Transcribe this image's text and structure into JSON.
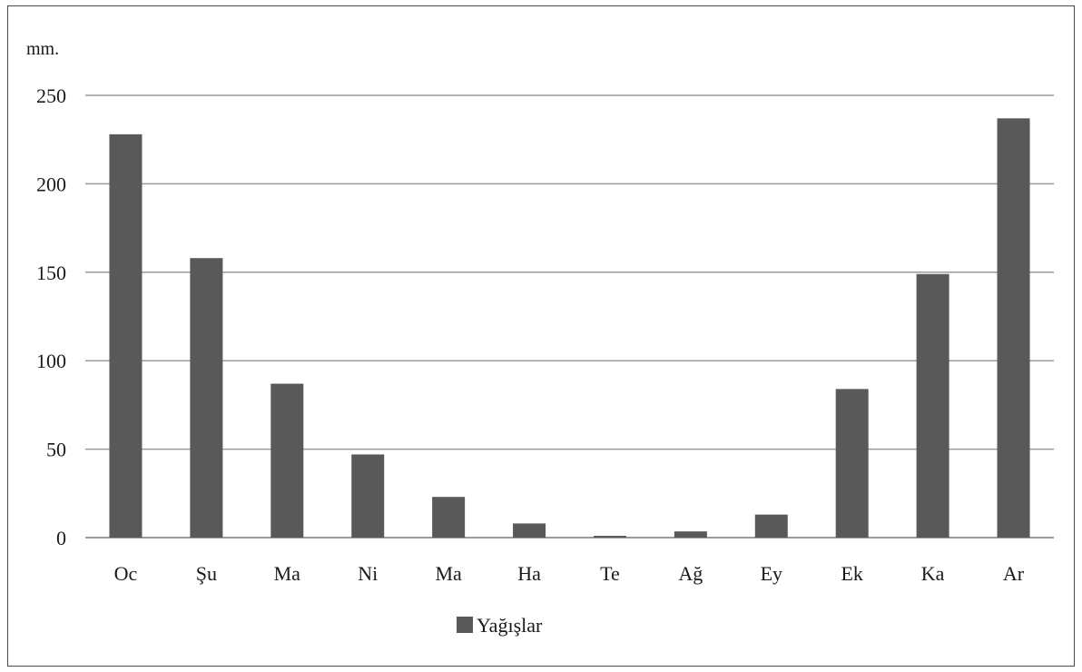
{
  "chart_data": {
    "type": "bar",
    "unit_label": "mm.",
    "categories": [
      "Oc",
      "Şu",
      "Ma",
      "Ni",
      "Ma",
      "Ha",
      "Te",
      "Ağ",
      "Ey",
      "Ek",
      "Ka",
      "Ar"
    ],
    "series": [
      {
        "name": "Yağışlar",
        "color": "#595959",
        "values": [
          228,
          158,
          87,
          47,
          23,
          8,
          1,
          3.5,
          13,
          84,
          149,
          237
        ]
      }
    ],
    "ylim": [
      0,
      250
    ],
    "yticks": [
      "0",
      "50",
      "100",
      "150",
      "200",
      "250"
    ],
    "grid": true,
    "legend_position": "bottom"
  }
}
